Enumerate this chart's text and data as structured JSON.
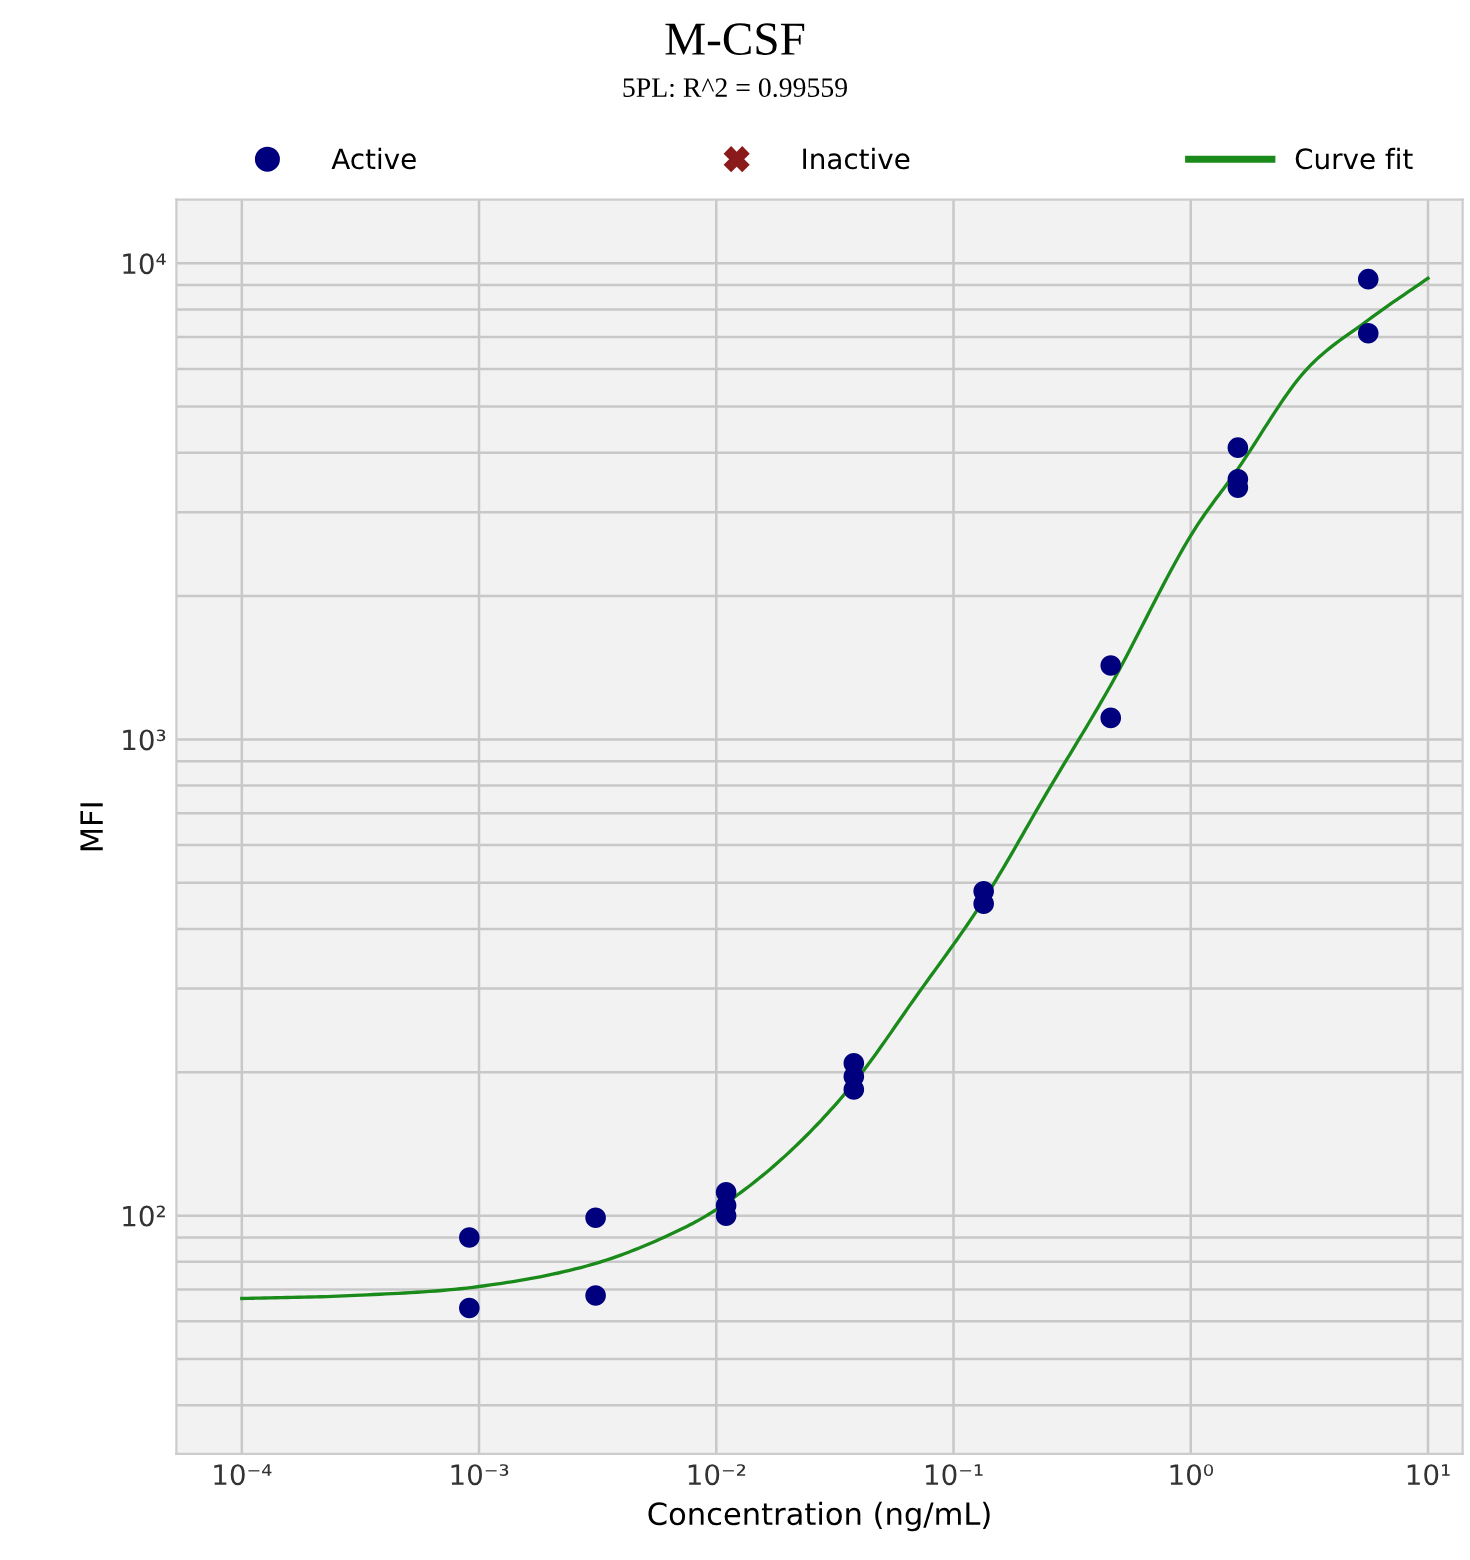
{
  "chart_data": {
    "type": "scatter",
    "title": "M-CSF",
    "subtitle": "5PL: R^2 = 0.99559",
    "xlabel": "Concentration (ng/mL)",
    "ylabel": "MFI",
    "log": "xy",
    "grid": true,
    "legend": "top",
    "xlim": [
      5.3e-05,
      14
    ],
    "ylim": [
      31.6,
      13600
    ],
    "xticks": [
      {
        "value": 0.0001,
        "label": "10⁻⁴"
      },
      {
        "value": 0.001,
        "label": "10⁻³"
      },
      {
        "value": 0.01,
        "label": "10⁻²"
      },
      {
        "value": 0.1,
        "label": "10⁻¹"
      },
      {
        "value": 1,
        "label": "10⁰"
      },
      {
        "value": 10,
        "label": "10¹"
      }
    ],
    "yticks": [
      {
        "value": 40,
        "label": null
      },
      {
        "value": 50,
        "label": null
      },
      {
        "value": 60,
        "label": null
      },
      {
        "value": 70,
        "label": null
      },
      {
        "value": 80,
        "label": null
      },
      {
        "value": 90,
        "label": null
      },
      {
        "value": 100,
        "label": "10²"
      },
      {
        "value": 200,
        "label": null
      },
      {
        "value": 300,
        "label": null
      },
      {
        "value": 400,
        "label": null
      },
      {
        "value": 500,
        "label": null
      },
      {
        "value": 600,
        "label": null
      },
      {
        "value": 700,
        "label": null
      },
      {
        "value": 800,
        "label": null
      },
      {
        "value": 900,
        "label": null
      },
      {
        "value": 1000,
        "label": "10³"
      },
      {
        "value": 2000,
        "label": null
      },
      {
        "value": 3000,
        "label": null
      },
      {
        "value": 4000,
        "label": null
      },
      {
        "value": 5000,
        "label": null
      },
      {
        "value": 6000,
        "label": null
      },
      {
        "value": 7000,
        "label": null
      },
      {
        "value": 8000,
        "label": null
      },
      {
        "value": 9000,
        "label": null
      },
      {
        "value": 10000,
        "label": "10⁴"
      }
    ],
    "series": [
      {
        "name": "Active",
        "marker": "circle",
        "color": "#00007f",
        "x": [
          0.00091,
          0.00091,
          0.0031,
          0.0031,
          0.011,
          0.011,
          0.011,
          0.038,
          0.038,
          0.038,
          0.134,
          0.134,
          0.46,
          0.46,
          1.58,
          1.58,
          1.58,
          5.6,
          5.6
        ],
        "values": [
          90,
          64,
          99,
          68,
          112,
          105,
          100,
          209,
          196,
          184,
          480,
          452,
          1430,
          1110,
          4100,
          3520,
          3380,
          9260,
          7130
        ]
      },
      {
        "name": "Inactive",
        "type": "scatter",
        "marker": "cross",
        "color": "#8b1a1a"
      },
      {
        "name": "Curve fit",
        "type": "line",
        "marker": "none",
        "line_style": "solid",
        "color": "#1a8a1a",
        "x": [
          0.0001,
          0.0003,
          0.001,
          0.003,
          0.006,
          0.01,
          0.02,
          0.038,
          0.07,
          0.134,
          0.25,
          0.46,
          1,
          1.58,
          3,
          5.6,
          10
        ],
        "values": [
          67,
          68,
          71,
          79,
          90,
          103,
          135,
          190,
          290,
          460,
          780,
          1300,
          2680,
          3700,
          5900,
          7600,
          9300
        ]
      }
    ]
  }
}
